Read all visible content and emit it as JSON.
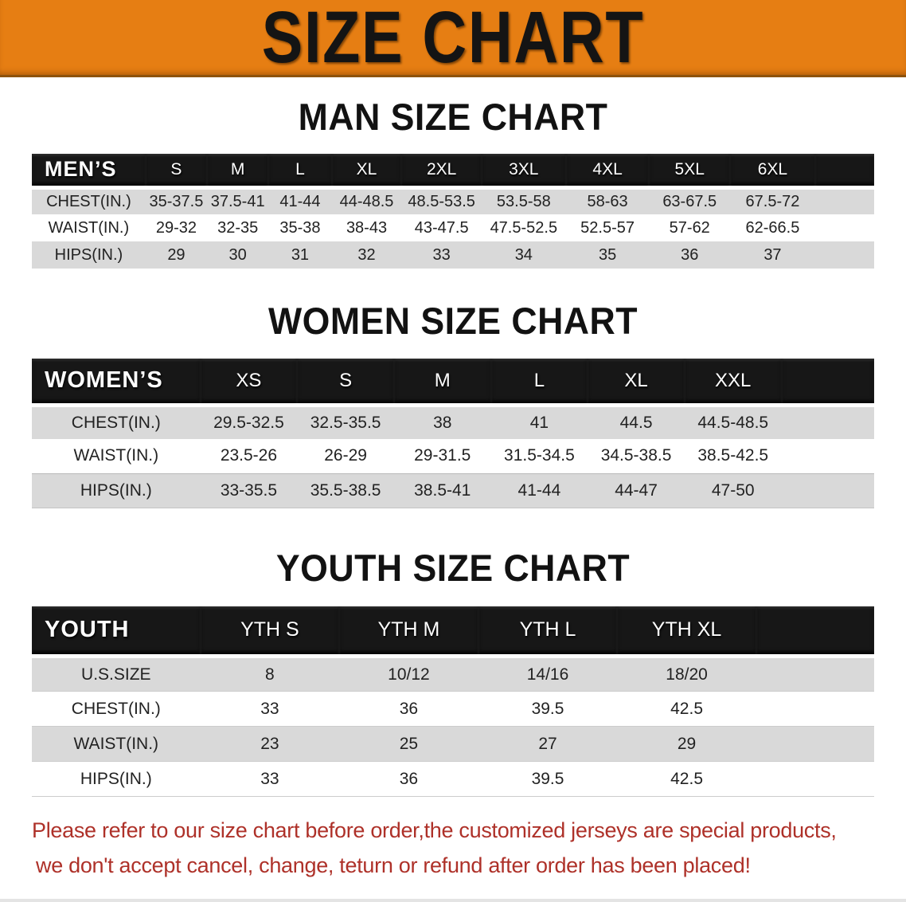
{
  "banner": {
    "title": "SIZE CHART"
  },
  "colors": {
    "banner_orange": "#e67e13",
    "header_black": "#171717",
    "row_gray": "#d9d9d9",
    "footer_red": "#ae3129"
  },
  "sections": [
    {
      "heading": "MAN SIZE CHART",
      "table": {
        "header_label": "MEN’S",
        "columns": [
          "S",
          "M",
          "L",
          "XL",
          "2XL",
          "3XL",
          "4XL",
          "5XL",
          "6XL"
        ],
        "rows": [
          {
            "label": "CHEST(IN.)",
            "values": [
              "35-37.5",
              "37.5-41",
              "41-44",
              "44-48.5",
              "48.5-53.5",
              "53.5-58",
              "58-63",
              "63-67.5",
              "67.5-72"
            ]
          },
          {
            "label": "WAIST(IN.)",
            "values": [
              "29-32",
              "32-35",
              "35-38",
              "38-43",
              "43-47.5",
              "47.5-52.5",
              "52.5-57",
              "57-62",
              "62-66.5"
            ]
          },
          {
            "label": "HIPS(IN.)",
            "values": [
              "29",
              "30",
              "31",
              "32",
              "33",
              "34",
              "35",
              "36",
              "37"
            ]
          }
        ]
      }
    },
    {
      "heading": "WOMEN SIZE CHART",
      "table": {
        "header_label": "WOMEN’S",
        "columns": [
          "XS",
          "S",
          "M",
          "L",
          "XL",
          "XXL"
        ],
        "rows": [
          {
            "label": "CHEST(IN.)",
            "values": [
              "29.5-32.5",
              "32.5-35.5",
              "38",
              "41",
              "44.5",
              "44.5-48.5"
            ]
          },
          {
            "label": "WAIST(IN.)",
            "values": [
              "23.5-26",
              "26-29",
              "29-31.5",
              "31.5-34.5",
              "34.5-38.5",
              "38.5-42.5"
            ]
          },
          {
            "label": "HIPS(IN.)",
            "values": [
              "33-35.5",
              "35.5-38.5",
              "38.5-41",
              "41-44",
              "44-47",
              "47-50"
            ]
          }
        ]
      }
    },
    {
      "heading": "YOUTH SIZE CHART",
      "table": {
        "header_label": "YOUTH",
        "columns": [
          "YTH S",
          "YTH M",
          "YTH L",
          "YTH XL"
        ],
        "rows": [
          {
            "label": "U.S.SIZE",
            "values": [
              "8",
              "10/12",
              "14/16",
              "18/20"
            ]
          },
          {
            "label": "CHEST(IN.)",
            "values": [
              "33",
              "36",
              "39.5",
              "42.5"
            ]
          },
          {
            "label": "WAIST(IN.)",
            "values": [
              "23",
              "25",
              "27",
              "29"
            ]
          },
          {
            "label": "HIPS(IN.)",
            "values": [
              "33",
              "36",
              "39.5",
              "42.5"
            ]
          }
        ]
      }
    }
  ],
  "footer": {
    "lines": [
      "Please refer to our size chart before order,the customized jerseys are special products,",
      "we don't accept cancel, change, teturn or refund after order has been placed!"
    ]
  }
}
